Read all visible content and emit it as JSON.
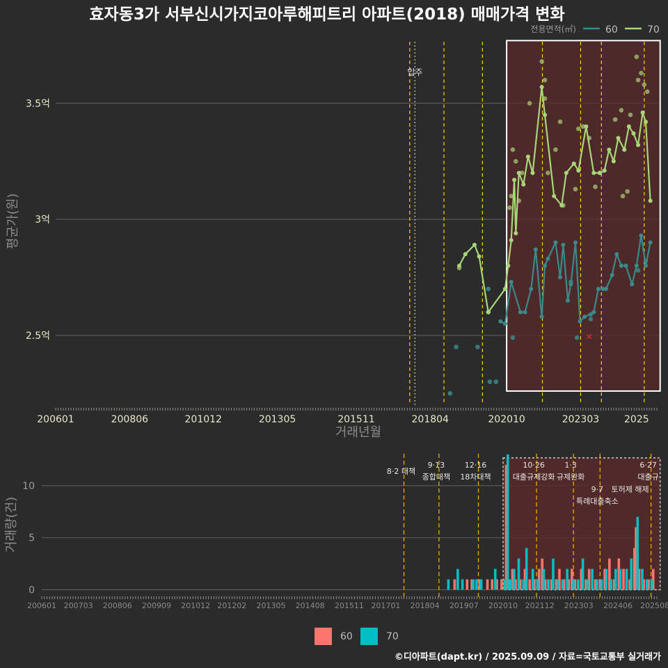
{
  "title": "효자동3가 서부신시가지코아루해피트리 아파트(2018) 매매가격 변화",
  "caption": "©디아파트(dapt.kr) / 2025.09.09 / 자료=국토교통부 실거래가",
  "colors": {
    "bg": "#2b2b2b",
    "series60": "#3a8a8c",
    "series70": "#a9d67a",
    "dot70": "#9ab56a",
    "grid": "#585858",
    "policy": "#ffd400",
    "policy_bottom": "#f0a800",
    "box_fill": "#5a2a2a",
    "bar60": "#f8766d",
    "bar70": "#00bfc4"
  },
  "chart_data": [
    {
      "type": "line",
      "title": "효자동3가 서부신시가지코아루해피트리 아파트(2018) 매매가격 변화",
      "xlabel": "거래년월",
      "ylabel": "평균가(원)",
      "xlim": [
        2006.0,
        2025.8
      ],
      "ylim": [
        2.2,
        3.78
      ],
      "x_ticks": [
        {
          "value": 2006.0,
          "label": "200601"
        },
        {
          "value": 2008.42,
          "label": "200806"
        },
        {
          "value": 2010.83,
          "label": "201012"
        },
        {
          "value": 2013.25,
          "label": "201305"
        },
        {
          "value": 2015.83,
          "label": "201511"
        },
        {
          "value": 2018.25,
          "label": "201804"
        },
        {
          "value": 2020.75,
          "label": "202010"
        },
        {
          "value": 2023.17,
          "label": "202303"
        },
        {
          "value": 2025.0,
          "label": "2025"
        }
      ],
      "y_ticks": [
        {
          "value": 2.5,
          "label": "2.5억"
        },
        {
          "value": 3.0,
          "label": "3억"
        },
        {
          "value": 3.5,
          "label": "3.5억"
        }
      ],
      "legend": {
        "title": "전용면적(㎡)",
        "position": "top-right",
        "entries": [
          "60",
          "70"
        ]
      },
      "move_in_label": "입주",
      "move_in_x": 2017.75,
      "policy_lines": [
        2017.58,
        2018.7,
        2019.96,
        2021.92,
        2023.17,
        2023.85,
        2025.25
      ],
      "highlight_box": {
        "x0": 2020.75,
        "x1": 2025.77,
        "y0": 2.26,
        "y1": 3.77
      },
      "series": [
        {
          "name": "60",
          "points": [
            [
              2020.55,
              2.56
            ],
            [
              2020.7,
              2.55
            ],
            [
              2020.9,
              2.73
            ],
            [
              2021.2,
              2.6
            ],
            [
              2021.35,
              2.6
            ],
            [
              2021.55,
              2.7
            ],
            [
              2021.7,
              2.87
            ],
            [
              2021.9,
              2.58
            ],
            [
              2022.0,
              2.8
            ],
            [
              2022.1,
              2.83
            ],
            [
              2022.35,
              2.9
            ],
            [
              2022.5,
              2.75
            ],
            [
              2022.6,
              2.89
            ],
            [
              2022.75,
              2.65
            ],
            [
              2022.85,
              2.72
            ],
            [
              2023.0,
              2.9
            ],
            [
              2023.15,
              2.56
            ],
            [
              2023.3,
              2.58
            ],
            [
              2023.6,
              2.6
            ],
            [
              2023.75,
              2.7
            ],
            [
              2023.9,
              2.7
            ],
            [
              2024.0,
              2.7
            ],
            [
              2024.2,
              2.76
            ],
            [
              2024.35,
              2.85
            ],
            [
              2024.5,
              2.8
            ],
            [
              2024.65,
              2.8
            ],
            [
              2024.85,
              2.72
            ],
            [
              2025.0,
              2.8
            ],
            [
              2025.15,
              2.93
            ],
            [
              2025.3,
              2.8
            ],
            [
              2025.45,
              2.9
            ]
          ],
          "dots": [
            [
              2019.1,
              2.45
            ],
            [
              2018.9,
              2.25
            ],
            [
              2019.8,
              2.45
            ],
            [
              2020.15,
              2.7
            ],
            [
              2020.2,
              2.3
            ],
            [
              2020.4,
              2.3
            ],
            [
              2020.95,
              2.49
            ],
            [
              2022.85,
              2.73
            ],
            [
              2023.05,
              2.49
            ],
            [
              2023.5,
              2.57
            ],
            [
              2023.5,
              2.59
            ],
            [
              2025.05,
              2.78
            ],
            [
              2025.3,
              2.82
            ]
          ]
        },
        {
          "name": "70",
          "points": [
            [
              2019.2,
              2.8
            ],
            [
              2019.4,
              2.85
            ],
            [
              2019.7,
              2.89
            ],
            [
              2019.85,
              2.84
            ],
            [
              2020.15,
              2.6
            ],
            [
              2020.7,
              2.7
            ],
            [
              2020.8,
              2.8
            ],
            [
              2020.9,
              2.91
            ],
            [
              2021.0,
              3.17
            ],
            [
              2021.05,
              2.94
            ],
            [
              2021.15,
              3.2
            ],
            [
              2021.3,
              3.15
            ],
            [
              2021.45,
              3.27
            ],
            [
              2021.6,
              3.2
            ],
            [
              2021.9,
              3.57
            ],
            [
              2022.0,
              3.45
            ],
            [
              2022.3,
              3.1
            ],
            [
              2022.55,
              3.06
            ],
            [
              2022.7,
              3.2
            ],
            [
              2022.95,
              3.24
            ],
            [
              2023.1,
              3.21
            ],
            [
              2023.35,
              3.4
            ],
            [
              2023.6,
              3.2
            ],
            [
              2023.8,
              3.2
            ],
            [
              2023.95,
              3.21
            ],
            [
              2024.1,
              3.3
            ],
            [
              2024.25,
              3.25
            ],
            [
              2024.4,
              3.35
            ],
            [
              2024.6,
              3.3
            ],
            [
              2024.75,
              3.4
            ],
            [
              2024.9,
              3.37
            ],
            [
              2025.05,
              3.32
            ],
            [
              2025.2,
              3.46
            ],
            [
              2025.3,
              3.42
            ],
            [
              2025.45,
              3.08
            ]
          ],
          "dots": [
            [
              2019.2,
              2.79
            ],
            [
              2020.15,
              2.6
            ],
            [
              2020.85,
              3.05
            ],
            [
              2020.9,
              3.1
            ],
            [
              2020.95,
              3.3
            ],
            [
              2021.05,
              3.25
            ],
            [
              2021.15,
              3.08
            ],
            [
              2021.25,
              3.2
            ],
            [
              2021.5,
              3.5
            ],
            [
              2021.9,
              3.68
            ],
            [
              2022.0,
              3.6
            ],
            [
              2022.0,
              3.52
            ],
            [
              2022.1,
              3.2
            ],
            [
              2022.35,
              3.3
            ],
            [
              2022.5,
              3.42
            ],
            [
              2022.6,
              3.06
            ],
            [
              2023.0,
              3.13
            ],
            [
              2023.1,
              3.39
            ],
            [
              2023.25,
              3.4
            ],
            [
              2023.45,
              3.35
            ],
            [
              2023.65,
              3.14
            ],
            [
              2023.8,
              3.2
            ],
            [
              2024.3,
              3.43
            ],
            [
              2024.5,
              3.47
            ],
            [
              2024.55,
              3.1
            ],
            [
              2024.7,
              3.12
            ],
            [
              2024.8,
              3.45
            ],
            [
              2025.0,
              3.7
            ],
            [
              2025.05,
              3.6
            ],
            [
              2025.15,
              3.63
            ],
            [
              2025.25,
              3.58
            ],
            [
              2025.35,
              3.55
            ]
          ]
        }
      ],
      "annotations": [
        {
          "type": "marker",
          "x": 2023.45,
          "y": 2.495,
          "label": "×"
        }
      ]
    },
    {
      "type": "bar",
      "ylabel": "거래량(건)",
      "xlim": [
        2006.0,
        2025.8
      ],
      "ylim": [
        -0.5,
        13.2
      ],
      "x_ticks": [
        {
          "value": 2006.0,
          "label": "200601"
        },
        {
          "value": 2007.17,
          "label": "200703"
        },
        {
          "value": 2008.42,
          "label": "200806"
        },
        {
          "value": 2009.67,
          "label": "200909"
        },
        {
          "value": 2010.92,
          "label": "201012"
        },
        {
          "value": 2012.08,
          "label": "201202"
        },
        {
          "value": 2013.33,
          "label": "201305"
        },
        {
          "value": 2014.58,
          "label": "201408"
        },
        {
          "value": 2015.83,
          "label": "201511"
        },
        {
          "value": 2017.0,
          "label": "201701"
        },
        {
          "value": 2018.25,
          "label": "201804"
        },
        {
          "value": 2019.5,
          "label": "201907"
        },
        {
          "value": 2020.75,
          "label": "202010"
        },
        {
          "value": 2021.92,
          "label": "202112"
        },
        {
          "value": 2023.17,
          "label": "202303"
        },
        {
          "value": 2024.42,
          "label": "202406"
        },
        {
          "value": 2025.6,
          "label": "202508"
        }
      ],
      "y_ticks": [
        {
          "value": 0,
          "label": "0"
        },
        {
          "value": 5,
          "label": "5"
        },
        {
          "value": 10,
          "label": "10"
        }
      ],
      "legend": {
        "position": "bottom",
        "entries": [
          "60",
          "70"
        ]
      },
      "policies": [
        {
          "x": 2017.58,
          "lines": [
            "8·2 대책"
          ],
          "row": 0
        },
        {
          "x": 2018.7,
          "lines": [
            "9·13",
            "종합대책"
          ],
          "row": 1
        },
        {
          "x": 2019.96,
          "lines": [
            "12·16",
            "18차대책"
          ],
          "row": 1
        },
        {
          "x": 2021.82,
          "lines": [
            "10·26",
            "대출규제강화"
          ],
          "row": 1
        },
        {
          "x": 2023.0,
          "lines": [
            "1·3",
            "규제완화"
          ],
          "row": 1
        },
        {
          "x": 2023.85,
          "lines": [
            "9·7",
            "특례대출축소"
          ],
          "row": 2
        },
        {
          "x": 2025.48,
          "lines": [
            "6·27",
            "대출규"
          ],
          "row": 1
        },
        {
          "x": 2024.9,
          "lines": [
            "토허제 해제"
          ],
          "row": 2
        }
      ],
      "highlight_box": {
        "x0": 2020.75,
        "x1": 2025.77
      },
      "series": [
        {
          "name": "60",
          "values": [
            [
              2019.2,
              1
            ],
            [
              2019.6,
              1
            ],
            [
              2019.75,
              1
            ],
            [
              2020.0,
              1
            ],
            [
              2020.25,
              1
            ],
            [
              2020.4,
              1
            ],
            [
              2020.55,
              1
            ],
            [
              2020.7,
              1
            ],
            [
              2020.85,
              12
            ],
            [
              2020.95,
              1
            ],
            [
              2021.05,
              2
            ],
            [
              2021.15,
              1
            ],
            [
              2021.3,
              1
            ],
            [
              2021.45,
              2
            ],
            [
              2021.6,
              1
            ],
            [
              2021.75,
              1
            ],
            [
              2021.9,
              2
            ],
            [
              2022.0,
              3
            ],
            [
              2022.1,
              1
            ],
            [
              2022.3,
              1
            ],
            [
              2022.45,
              1
            ],
            [
              2022.55,
              2
            ],
            [
              2022.7,
              1
            ],
            [
              2022.85,
              1
            ],
            [
              2022.95,
              2
            ],
            [
              2023.05,
              1
            ],
            [
              2023.25,
              2
            ],
            [
              2023.4,
              1
            ],
            [
              2023.5,
              2
            ],
            [
              2023.7,
              1
            ],
            [
              2023.85,
              1
            ],
            [
              2024.0,
              2
            ],
            [
              2024.15,
              3
            ],
            [
              2024.3,
              1
            ],
            [
              2024.45,
              3
            ],
            [
              2024.6,
              2
            ],
            [
              2024.8,
              1
            ],
            [
              2024.95,
              4
            ],
            [
              2025.0,
              6
            ],
            [
              2025.1,
              2
            ],
            [
              2025.25,
              1
            ],
            [
              2025.4,
              1
            ],
            [
              2025.55,
              2
            ]
          ]
        },
        {
          "name": "70",
          "values": [
            [
              2019.0,
              1
            ],
            [
              2019.3,
              2
            ],
            [
              2019.45,
              1
            ],
            [
              2019.8,
              1
            ],
            [
              2019.9,
              1
            ],
            [
              2020.05,
              1
            ],
            [
              2020.5,
              2
            ],
            [
              2020.8,
              1
            ],
            [
              2020.9,
              13
            ],
            [
              2021.0,
              1
            ],
            [
              2021.1,
              2
            ],
            [
              2021.25,
              3
            ],
            [
              2021.4,
              1
            ],
            [
              2021.5,
              4
            ],
            [
              2021.7,
              2
            ],
            [
              2021.85,
              1
            ],
            [
              2022.05,
              2
            ],
            [
              2022.2,
              1
            ],
            [
              2022.35,
              3
            ],
            [
              2022.5,
              1
            ],
            [
              2022.65,
              1
            ],
            [
              2022.8,
              2
            ],
            [
              2023.0,
              1
            ],
            [
              2023.15,
              1
            ],
            [
              2023.3,
              3
            ],
            [
              2023.45,
              1
            ],
            [
              2023.6,
              2
            ],
            [
              2023.75,
              1
            ],
            [
              2023.9,
              1
            ],
            [
              2024.05,
              2
            ],
            [
              2024.2,
              1
            ],
            [
              2024.35,
              2
            ],
            [
              2024.5,
              2
            ],
            [
              2024.7,
              2
            ],
            [
              2024.85,
              3
            ],
            [
              2025.05,
              7
            ],
            [
              2025.2,
              2
            ],
            [
              2025.35,
              1
            ],
            [
              2025.5,
              1
            ]
          ]
        }
      ]
    }
  ]
}
